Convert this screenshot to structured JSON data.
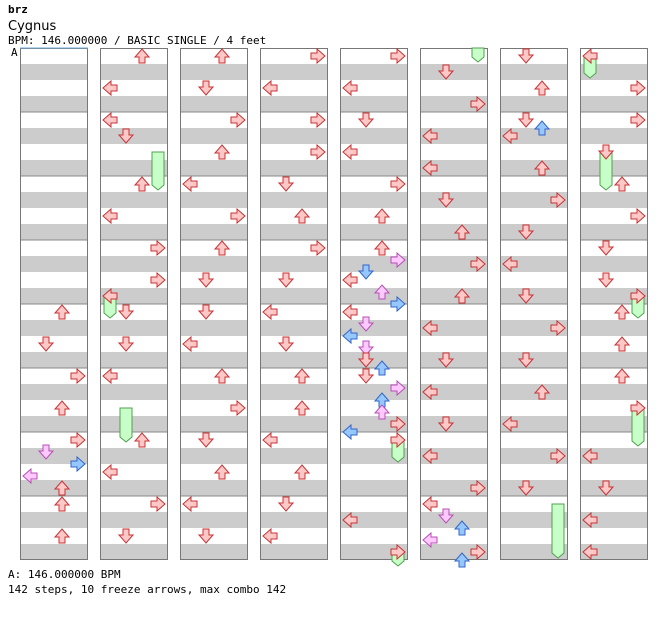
{
  "header": {
    "artist": "brz",
    "title": "Cygnus",
    "meta": "BPM: 146.000000 / BASIC SINGLE / 4 feet"
  },
  "bpm_marker": {
    "label": "A"
  },
  "footer": {
    "bpm_line": "A: 146.000000 BPM",
    "stats": "142 steps, 10 freeze arrows, max combo 142"
  },
  "colors": {
    "red_fill": "#ffc8c8",
    "red_stroke": "#c83232",
    "blue_fill": "#96c8ff",
    "blue_stroke": "#3264c8",
    "pink_fill": "#ffc8ff",
    "pink_stroke": "#b450b4",
    "freeze_fill": "#c8ffc8",
    "freeze_stroke": "#50a050",
    "stripe": "#cccccc",
    "border": "#777777"
  },
  "chart_data": {
    "type": "stepchart",
    "lanes": [
      "left",
      "down",
      "up",
      "right"
    ],
    "columns": 8,
    "measures_per_column": 8,
    "notes": [
      {
        "c": 0,
        "y": 312,
        "l": 2,
        "k": "r"
      },
      {
        "c": 0,
        "y": 344,
        "l": 1,
        "k": "r"
      },
      {
        "c": 0,
        "y": 376,
        "l": 3,
        "k": "r"
      },
      {
        "c": 0,
        "y": 408,
        "l": 2,
        "k": "r"
      },
      {
        "c": 0,
        "y": 440,
        "l": 3,
        "k": "r"
      },
      {
        "c": 0,
        "y": 452,
        "l": 1,
        "k": "p"
      },
      {
        "c": 0,
        "y": 464,
        "l": 3,
        "k": "b"
      },
      {
        "c": 0,
        "y": 476,
        "l": 0,
        "k": "p"
      },
      {
        "c": 0,
        "y": 488,
        "l": 2,
        "k": "r"
      },
      {
        "c": 0,
        "y": 504,
        "l": 2,
        "k": "r"
      },
      {
        "c": 0,
        "y": 536,
        "l": 2,
        "k": "r"
      },
      {
        "c": 1,
        "y": 56,
        "l": 2,
        "k": "r"
      },
      {
        "c": 1,
        "y": 88,
        "l": 0,
        "k": "r"
      },
      {
        "c": 1,
        "y": 120,
        "l": 0,
        "k": "r"
      },
      {
        "c": 1,
        "y": 136,
        "l": 1,
        "k": "r"
      },
      {
        "c": 1,
        "y": 184,
        "l": 2,
        "k": "r"
      },
      {
        "c": 1,
        "y": 216,
        "l": 0,
        "k": "r"
      },
      {
        "c": 1,
        "y": 248,
        "l": 3,
        "k": "r"
      },
      {
        "c": 1,
        "y": 280,
        "l": 3,
        "k": "r"
      },
      {
        "c": 1,
        "y": 296,
        "l": 0,
        "k": "r"
      },
      {
        "c": 1,
        "y": 312,
        "l": 1,
        "k": "r"
      },
      {
        "c": 1,
        "y": 344,
        "l": 1,
        "k": "r"
      },
      {
        "c": 1,
        "y": 376,
        "l": 0,
        "k": "r"
      },
      {
        "c": 1,
        "y": 440,
        "l": 2,
        "k": "r"
      },
      {
        "c": 1,
        "y": 472,
        "l": 0,
        "k": "r"
      },
      {
        "c": 1,
        "y": 504,
        "l": 3,
        "k": "r"
      },
      {
        "c": 1,
        "y": 536,
        "l": 1,
        "k": "r"
      },
      {
        "c": 2,
        "y": 56,
        "l": 2,
        "k": "r"
      },
      {
        "c": 2,
        "y": 88,
        "l": 1,
        "k": "r"
      },
      {
        "c": 2,
        "y": 120,
        "l": 3,
        "k": "r"
      },
      {
        "c": 2,
        "y": 152,
        "l": 2,
        "k": "r"
      },
      {
        "c": 2,
        "y": 184,
        "l": 0,
        "k": "r"
      },
      {
        "c": 2,
        "y": 216,
        "l": 3,
        "k": "r"
      },
      {
        "c": 2,
        "y": 248,
        "l": 2,
        "k": "r"
      },
      {
        "c": 2,
        "y": 280,
        "l": 1,
        "k": "r"
      },
      {
        "c": 2,
        "y": 312,
        "l": 1,
        "k": "r"
      },
      {
        "c": 2,
        "y": 344,
        "l": 0,
        "k": "r"
      },
      {
        "c": 2,
        "y": 376,
        "l": 2,
        "k": "r"
      },
      {
        "c": 2,
        "y": 408,
        "l": 3,
        "k": "r"
      },
      {
        "c": 2,
        "y": 440,
        "l": 1,
        "k": "r"
      },
      {
        "c": 2,
        "y": 472,
        "l": 2,
        "k": "r"
      },
      {
        "c": 2,
        "y": 504,
        "l": 0,
        "k": "r"
      },
      {
        "c": 2,
        "y": 536,
        "l": 1,
        "k": "r"
      },
      {
        "c": 3,
        "y": 56,
        "l": 3,
        "k": "r"
      },
      {
        "c": 3,
        "y": 88,
        "l": 0,
        "k": "r"
      },
      {
        "c": 3,
        "y": 120,
        "l": 3,
        "k": "r"
      },
      {
        "c": 3,
        "y": 152,
        "l": 3,
        "k": "r"
      },
      {
        "c": 3,
        "y": 184,
        "l": 1,
        "k": "r"
      },
      {
        "c": 3,
        "y": 216,
        "l": 2,
        "k": "r"
      },
      {
        "c": 3,
        "y": 248,
        "l": 3,
        "k": "r"
      },
      {
        "c": 3,
        "y": 280,
        "l": 1,
        "k": "r"
      },
      {
        "c": 3,
        "y": 312,
        "l": 0,
        "k": "r"
      },
      {
        "c": 3,
        "y": 344,
        "l": 1,
        "k": "r"
      },
      {
        "c": 3,
        "y": 376,
        "l": 2,
        "k": "r"
      },
      {
        "c": 3,
        "y": 408,
        "l": 2,
        "k": "r"
      },
      {
        "c": 3,
        "y": 440,
        "l": 0,
        "k": "r"
      },
      {
        "c": 3,
        "y": 472,
        "l": 2,
        "k": "r"
      },
      {
        "c": 3,
        "y": 504,
        "l": 1,
        "k": "r"
      },
      {
        "c": 3,
        "y": 536,
        "l": 0,
        "k": "r"
      },
      {
        "c": 4,
        "y": 56,
        "l": 3,
        "k": "r"
      },
      {
        "c": 4,
        "y": 88,
        "l": 0,
        "k": "r"
      },
      {
        "c": 4,
        "y": 120,
        "l": 1,
        "k": "r"
      },
      {
        "c": 4,
        "y": 152,
        "l": 0,
        "k": "r"
      },
      {
        "c": 4,
        "y": 184,
        "l": 3,
        "k": "r"
      },
      {
        "c": 4,
        "y": 216,
        "l": 2,
        "k": "r"
      },
      {
        "c": 4,
        "y": 248,
        "l": 2,
        "k": "r"
      },
      {
        "c": 4,
        "y": 260,
        "l": 3,
        "k": "p"
      },
      {
        "c": 4,
        "y": 272,
        "l": 1,
        "k": "b"
      },
      {
        "c": 4,
        "y": 280,
        "l": 0,
        "k": "r"
      },
      {
        "c": 4,
        "y": 292,
        "l": 2,
        "k": "p"
      },
      {
        "c": 4,
        "y": 304,
        "l": 3,
        "k": "b"
      },
      {
        "c": 4,
        "y": 312,
        "l": 0,
        "k": "r"
      },
      {
        "c": 4,
        "y": 324,
        "l": 1,
        "k": "p"
      },
      {
        "c": 4,
        "y": 336,
        "l": 0,
        "k": "b"
      },
      {
        "c": 4,
        "y": 348,
        "l": 1,
        "k": "p"
      },
      {
        "c": 4,
        "y": 360,
        "l": 1,
        "k": "r"
      },
      {
        "c": 4,
        "y": 368,
        "l": 2,
        "k": "b"
      },
      {
        "c": 4,
        "y": 376,
        "l": 1,
        "k": "r"
      },
      {
        "c": 4,
        "y": 388,
        "l": 3,
        "k": "p"
      },
      {
        "c": 4,
        "y": 400,
        "l": 2,
        "k": "b"
      },
      {
        "c": 4,
        "y": 412,
        "l": 2,
        "k": "p"
      },
      {
        "c": 4,
        "y": 424,
        "l": 3,
        "k": "r"
      },
      {
        "c": 4,
        "y": 432,
        "l": 0,
        "k": "b"
      },
      {
        "c": 4,
        "y": 440,
        "l": 3,
        "k": "r"
      },
      {
        "c": 4,
        "y": 520,
        "l": 0,
        "k": "r"
      },
      {
        "c": 4,
        "y": 552,
        "l": 3,
        "k": "r"
      },
      {
        "c": 5,
        "y": 72,
        "l": 1,
        "k": "r"
      },
      {
        "c": 5,
        "y": 104,
        "l": 3,
        "k": "r"
      },
      {
        "c": 5,
        "y": 136,
        "l": 0,
        "k": "r"
      },
      {
        "c": 5,
        "y": 168,
        "l": 0,
        "k": "r"
      },
      {
        "c": 5,
        "y": 200,
        "l": 1,
        "k": "r"
      },
      {
        "c": 5,
        "y": 232,
        "l": 2,
        "k": "r"
      },
      {
        "c": 5,
        "y": 264,
        "l": 3,
        "k": "r"
      },
      {
        "c": 5,
        "y": 296,
        "l": 2,
        "k": "r"
      },
      {
        "c": 5,
        "y": 328,
        "l": 0,
        "k": "r"
      },
      {
        "c": 5,
        "y": 360,
        "l": 1,
        "k": "r"
      },
      {
        "c": 5,
        "y": 392,
        "l": 0,
        "k": "r"
      },
      {
        "c": 5,
        "y": 424,
        "l": 1,
        "k": "r"
      },
      {
        "c": 5,
        "y": 456,
        "l": 0,
        "k": "r"
      },
      {
        "c": 5,
        "y": 488,
        "l": 3,
        "k": "r"
      },
      {
        "c": 5,
        "y": 504,
        "l": 0,
        "k": "r"
      },
      {
        "c": 5,
        "y": 516,
        "l": 1,
        "k": "p"
      },
      {
        "c": 5,
        "y": 528,
        "l": 2,
        "k": "b"
      },
      {
        "c": 5,
        "y": 540,
        "l": 0,
        "k": "p"
      },
      {
        "c": 5,
        "y": 552,
        "l": 3,
        "k": "r"
      },
      {
        "c": 5,
        "y": 560,
        "l": 2,
        "k": "b"
      },
      {
        "c": 6,
        "y": 56,
        "l": 1,
        "k": "r"
      },
      {
        "c": 6,
        "y": 88,
        "l": 2,
        "k": "r"
      },
      {
        "c": 6,
        "y": 120,
        "l": 1,
        "k": "r"
      },
      {
        "c": 6,
        "y": 128,
        "l": 2,
        "k": "b"
      },
      {
        "c": 6,
        "y": 136,
        "l": 0,
        "k": "r"
      },
      {
        "c": 6,
        "y": 168,
        "l": 2,
        "k": "r"
      },
      {
        "c": 6,
        "y": 200,
        "l": 3,
        "k": "r"
      },
      {
        "c": 6,
        "y": 232,
        "l": 1,
        "k": "r"
      },
      {
        "c": 6,
        "y": 264,
        "l": 0,
        "k": "r"
      },
      {
        "c": 6,
        "y": 296,
        "l": 1,
        "k": "r"
      },
      {
        "c": 6,
        "y": 328,
        "l": 3,
        "k": "r"
      },
      {
        "c": 6,
        "y": 360,
        "l": 1,
        "k": "r"
      },
      {
        "c": 6,
        "y": 392,
        "l": 2,
        "k": "r"
      },
      {
        "c": 6,
        "y": 424,
        "l": 0,
        "k": "r"
      },
      {
        "c": 6,
        "y": 456,
        "l": 3,
        "k": "r"
      },
      {
        "c": 6,
        "y": 488,
        "l": 1,
        "k": "r"
      },
      {
        "c": 7,
        "y": 56,
        "l": 0,
        "k": "r"
      },
      {
        "c": 7,
        "y": 88,
        "l": 3,
        "k": "r"
      },
      {
        "c": 7,
        "y": 120,
        "l": 3,
        "k": "r"
      },
      {
        "c": 7,
        "y": 152,
        "l": 1,
        "k": "r"
      },
      {
        "c": 7,
        "y": 184,
        "l": 2,
        "k": "r"
      },
      {
        "c": 7,
        "y": 216,
        "l": 3,
        "k": "r"
      },
      {
        "c": 7,
        "y": 248,
        "l": 1,
        "k": "r"
      },
      {
        "c": 7,
        "y": 280,
        "l": 1,
        "k": "r"
      },
      {
        "c": 7,
        "y": 296,
        "l": 3,
        "k": "r"
      },
      {
        "c": 7,
        "y": 312,
        "l": 2,
        "k": "r"
      },
      {
        "c": 7,
        "y": 344,
        "l": 2,
        "k": "r"
      },
      {
        "c": 7,
        "y": 376,
        "l": 2,
        "k": "r"
      },
      {
        "c": 7,
        "y": 408,
        "l": 3,
        "k": "r"
      },
      {
        "c": 7,
        "y": 456,
        "l": 0,
        "k": "r"
      },
      {
        "c": 7,
        "y": 488,
        "l": 1,
        "k": "r"
      },
      {
        "c": 7,
        "y": 520,
        "l": 0,
        "k": "r"
      },
      {
        "c": 7,
        "y": 552,
        "l": 0,
        "k": "r"
      }
    ],
    "freezes": [
      {
        "c": 1,
        "l": 3,
        "y1": 152,
        "y2": 190
      },
      {
        "c": 1,
        "l": 0,
        "y1": 296,
        "y2": 318
      },
      {
        "c": 1,
        "l": 1,
        "y1": 408,
        "y2": 442
      },
      {
        "c": 4,
        "l": 3,
        "y1": 440,
        "y2": 462
      },
      {
        "c": 4,
        "l": 3,
        "y1": 552,
        "y2": 566
      },
      {
        "c": 5,
        "l": 3,
        "y1": 48,
        "y2": 62
      },
      {
        "c": 6,
        "l": 3,
        "y1": 504,
        "y2": 558
      },
      {
        "c": 7,
        "l": 0,
        "y1": 56,
        "y2": 78
      },
      {
        "c": 7,
        "l": 1,
        "y1": 152,
        "y2": 190
      },
      {
        "c": 7,
        "l": 3,
        "y1": 296,
        "y2": 318
      },
      {
        "c": 7,
        "l": 3,
        "y1": 408,
        "y2": 446
      }
    ]
  }
}
